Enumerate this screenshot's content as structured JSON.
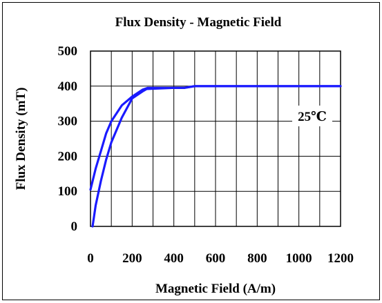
{
  "chart_data": {
    "type": "line",
    "title": "Flux Density - Magnetic Field",
    "xlabel": "Magnetic Field (A/m)",
    "ylabel": "Flux Density (mT)",
    "xlim": [
      0,
      1200
    ],
    "ylim": [
      0,
      500
    ],
    "x_ticks": [
      0,
      200,
      400,
      600,
      800,
      1000,
      1200
    ],
    "y_ticks": [
      0,
      100,
      200,
      300,
      400,
      500
    ],
    "x_grid_step": 100,
    "y_grid_step": 100,
    "grid": true,
    "annotation": "25℃",
    "annotation_position": "right",
    "series_color": "#1a1aff",
    "series": [
      {
        "values": [
          [
            0,
            105
          ],
          [
            25,
            165
          ],
          [
            50,
            215
          ],
          [
            75,
            265
          ],
          [
            100,
            300
          ],
          [
            150,
            345
          ],
          [
            200,
            370
          ],
          [
            250,
            390
          ],
          [
            275,
            395
          ],
          [
            400,
            395
          ],
          [
            450,
            395
          ],
          [
            500,
            400
          ],
          [
            1200,
            400
          ]
        ]
      },
      {
        "values": [
          [
            10,
            0
          ],
          [
            25,
            60
          ],
          [
            50,
            130
          ],
          [
            75,
            190
          ],
          [
            100,
            240
          ],
          [
            150,
            310
          ],
          [
            200,
            365
          ],
          [
            250,
            385
          ],
          [
            270,
            392
          ],
          [
            400,
            395
          ],
          [
            450,
            395
          ],
          [
            500,
            400
          ],
          [
            1200,
            400
          ]
        ]
      }
    ]
  }
}
